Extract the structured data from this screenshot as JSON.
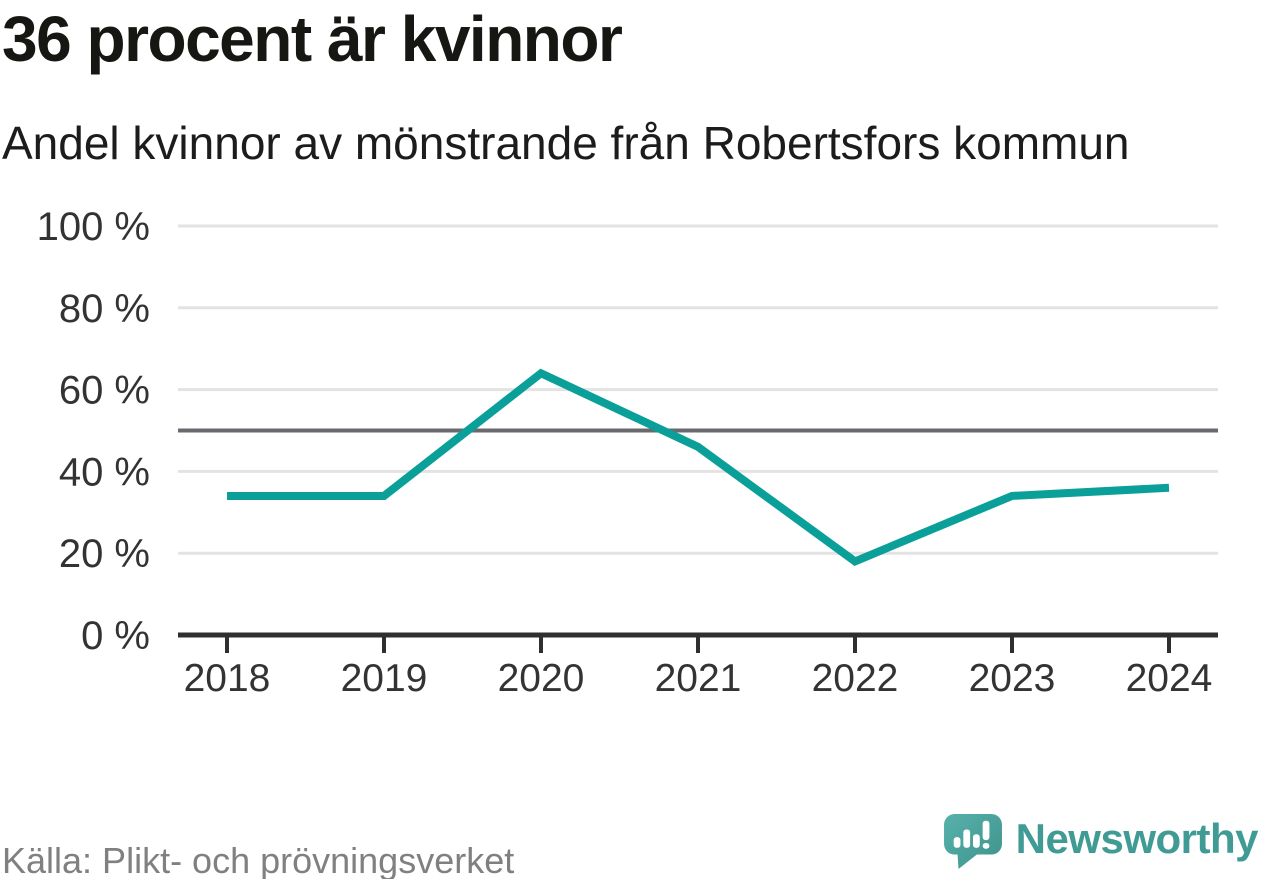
{
  "header": {
    "title": "36 procent är kvinnor",
    "subtitle": "Andel kvinnor av mönstrande från Robertsfors kommun"
  },
  "footer": {
    "source": "Källa: Plikt- och prövningsverket",
    "brand": "Newsworthy"
  },
  "colors": {
    "line": "#0aa099",
    "reference_line": "#6a6a6e",
    "gridline": "#e3e3e3",
    "axis": "#2f2f2f",
    "tick_text": "#333333",
    "title_text": "#161612",
    "source_text": "#808080",
    "brand_teal": "#3f9b94",
    "logo_bubble_light": "#55b0a9",
    "logo_bubble_dark": "#3e918b"
  },
  "chart_data": {
    "type": "line",
    "title": "36 procent är kvinnor",
    "subtitle": "Andel kvinnor av mönstrande från Robertsfors kommun",
    "x": [
      "2018",
      "2019",
      "2020",
      "2021",
      "2022",
      "2023",
      "2024"
    ],
    "series": [
      {
        "name": "Andel kvinnor av mönstrande",
        "values": [
          34,
          34,
          64,
          46,
          18,
          34,
          36
        ]
      }
    ],
    "unit": "%",
    "ylim": [
      0,
      100
    ],
    "yticks": [
      0,
      20,
      40,
      60,
      80,
      100
    ],
    "ytick_labels": [
      "0 %",
      "20 %",
      "40 %",
      "60 %",
      "80 %",
      "100 %"
    ],
    "reference_line": 50,
    "grid": true,
    "legend": false,
    "source_note": "Källa: Plikt- och prövningsverket"
  }
}
